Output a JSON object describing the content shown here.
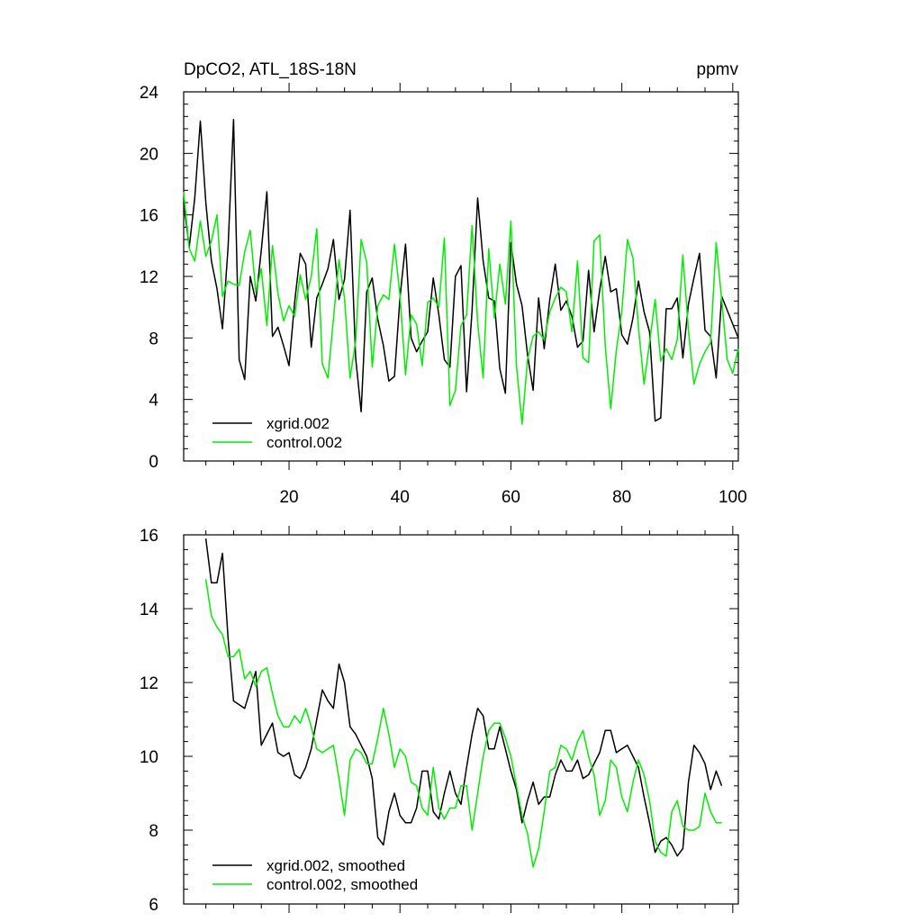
{
  "chart_data": [
    {
      "type": "line",
      "title": "DpCO2, ATL_18S-18N",
      "units": "ppmv",
      "xlabel": "",
      "ylabel": "",
      "xlim": [
        1,
        101
      ],
      "ylim": [
        0,
        24
      ],
      "xticks": [
        20,
        40,
        60,
        80,
        100
      ],
      "yticks": [
        0,
        4,
        8,
        12,
        16,
        20,
        24
      ],
      "legend": "bottom-left",
      "grid": false,
      "x": [
        1,
        2,
        3,
        4,
        5,
        6,
        7,
        8,
        9,
        10,
        11,
        12,
        13,
        14,
        15,
        16,
        17,
        18,
        19,
        20,
        21,
        22,
        23,
        24,
        25,
        26,
        27,
        28,
        29,
        30,
        31,
        32,
        33,
        34,
        35,
        36,
        37,
        38,
        39,
        40,
        41,
        42,
        43,
        44,
        45,
        46,
        47,
        48,
        49,
        50,
        51,
        52,
        53,
        54,
        55,
        56,
        57,
        58,
        59,
        60,
        61,
        62,
        63,
        64,
        65,
        66,
        67,
        68,
        69,
        70,
        71,
        72,
        73,
        74,
        75,
        76,
        77,
        78,
        79,
        80,
        81,
        82,
        83,
        84,
        85,
        86,
        87,
        88,
        89,
        90,
        91,
        92,
        93,
        94,
        95,
        96,
        97,
        98,
        99,
        100,
        101
      ],
      "series": [
        {
          "name": "xgrid.002",
          "color": "#000000",
          "values": [
            16.8,
            13.9,
            17.1,
            22.1,
            16.8,
            13.0,
            11.2,
            8.6,
            13.9,
            22.2,
            6.6,
            5.3,
            12.0,
            10.4,
            13.7,
            17.5,
            8.1,
            8.7,
            7.5,
            6.2,
            10.3,
            13.5,
            12.8,
            7.4,
            10.6,
            11.5,
            12.5,
            14.4,
            10.5,
            11.8,
            16.3,
            6.7,
            3.2,
            11.0,
            11.9,
            9.2,
            7.5,
            5.2,
            5.5,
            10.6,
            14.1,
            8.0,
            7.1,
            7.8,
            8.4,
            11.9,
            9.5,
            6.6,
            6.1,
            12.0,
            12.7,
            4.5,
            9.8,
            17.1,
            13.0,
            10.6,
            10.4,
            6.0,
            4.4,
            14.2,
            11.5,
            10.1,
            6.9,
            4.6,
            10.6,
            7.3,
            10.5,
            12.8,
            9.8,
            10.4,
            9.4,
            7.4,
            7.8,
            12.4,
            8.4,
            11.1,
            13.3,
            11.0,
            11.2,
            8.2,
            7.6,
            9.3,
            11.7,
            9.7,
            8.4,
            2.6,
            2.8,
            9.9,
            9.9,
            10.6,
            6.7,
            10.2,
            11.9,
            13.5,
            8.5,
            8.1,
            5.4,
            10.7,
            9.8,
            8.9,
            8.0
          ]
        },
        {
          "name": "control.002",
          "color": "#00ee00",
          "values": [
            17.5,
            13.8,
            13.0,
            15.6,
            13.3,
            14.3,
            16.0,
            10.7,
            11.7,
            11.5,
            11.4,
            13.6,
            15.0,
            11.0,
            12.5,
            8.8,
            14.0,
            10.9,
            9.1,
            10.1,
            9.4,
            12.1,
            10.5,
            12.0,
            15.1,
            6.3,
            5.4,
            9.2,
            13.1,
            10.6,
            5.4,
            7.8,
            14.4,
            12.9,
            6.1,
            10.1,
            10.8,
            10.5,
            14.1,
            10.8,
            5.6,
            9.5,
            8.9,
            6.2,
            10.3,
            10.6,
            10.0,
            14.5,
            3.6,
            4.6,
            8.8,
            9.5,
            15.3,
            9.0,
            5.4,
            13.8,
            9.3,
            12.8,
            10.2,
            15.6,
            6.2,
            2.4,
            6.6,
            8.1,
            8.4,
            7.9,
            9.7,
            10.6,
            11.3,
            11.0,
            8.4,
            13.0,
            6.7,
            6.4,
            14.3,
            14.7,
            7.5,
            3.4,
            7.2,
            9.7,
            14.4,
            13.2,
            8.7,
            5.0,
            7.7,
            10.5,
            6.5,
            7.3,
            6.6,
            7.9,
            13.4,
            8.5,
            5.0,
            6.3,
            7.1,
            7.7,
            14.2,
            10.5,
            6.6,
            5.7,
            7.3
          ]
        }
      ]
    },
    {
      "type": "line",
      "title": "",
      "xlabel": "",
      "ylabel": "",
      "xlim": [
        1,
        101
      ],
      "ylim": [
        6,
        16
      ],
      "xticks": [
        20,
        40,
        60,
        80,
        100
      ],
      "yticks": [
        6,
        8,
        10,
        12,
        14,
        16
      ],
      "legend": "bottom-left",
      "grid": false,
      "x": [
        5,
        6,
        7,
        8,
        9,
        10,
        11,
        12,
        13,
        14,
        15,
        16,
        17,
        18,
        19,
        20,
        21,
        22,
        23,
        24,
        25,
        26,
        27,
        28,
        29,
        30,
        31,
        32,
        33,
        34,
        35,
        36,
        37,
        38,
        39,
        40,
        41,
        42,
        43,
        44,
        45,
        46,
        47,
        48,
        49,
        50,
        51,
        52,
        53,
        54,
        55,
        56,
        57,
        58,
        59,
        60,
        61,
        62,
        63,
        64,
        65,
        66,
        67,
        68,
        69,
        70,
        71,
        72,
        73,
        74,
        75,
        76,
        77,
        78,
        79,
        80,
        81,
        82,
        83,
        84,
        85,
        86,
        87,
        88,
        89,
        90,
        91,
        92,
        93,
        94,
        95,
        96,
        97,
        98
      ],
      "series": [
        {
          "name": "xgrid.002, smoothed",
          "color": "#000000",
          "values": [
            15.9,
            14.7,
            14.7,
            15.5,
            13.2,
            11.5,
            11.4,
            11.3,
            11.8,
            12.3,
            10.3,
            10.6,
            10.9,
            10.1,
            10.0,
            10.1,
            9.5,
            9.4,
            9.7,
            10.2,
            11.0,
            11.8,
            11.5,
            11.3,
            12.5,
            12.0,
            10.8,
            10.6,
            10.3,
            10.0,
            9.4,
            7.8,
            7.6,
            8.5,
            9.0,
            8.4,
            8.2,
            8.2,
            8.6,
            9.6,
            9.6,
            8.5,
            8.3,
            9.0,
            9.6,
            9.0,
            8.7,
            9.7,
            10.6,
            11.3,
            11.1,
            10.2,
            10.2,
            10.8,
            10.2,
            9.6,
            9.1,
            8.2,
            8.8,
            9.3,
            8.7,
            8.9,
            8.9,
            9.5,
            9.9,
            9.6,
            9.6,
            9.9,
            9.4,
            9.5,
            9.8,
            10.1,
            10.7,
            10.7,
            10.1,
            10.2,
            10.3,
            10.0,
            9.7,
            8.9,
            8.2,
            7.4,
            7.7,
            7.8,
            7.6,
            7.3,
            7.5,
            9.3,
            10.3,
            10.1,
            9.8,
            9.1,
            9.6,
            9.2
          ]
        },
        {
          "name": "control.002, smoothed",
          "color": "#00ee00",
          "values": [
            14.8,
            13.8,
            13.5,
            13.3,
            12.7,
            12.7,
            12.9,
            12.1,
            12.3,
            11.9,
            12.3,
            12.4,
            11.7,
            11.1,
            10.8,
            10.8,
            11.1,
            10.9,
            11.3,
            10.8,
            10.2,
            10.1,
            10.2,
            10.3,
            9.4,
            8.4,
            9.9,
            10.2,
            10.1,
            9.8,
            9.8,
            10.5,
            11.3,
            10.6,
            9.7,
            10.2,
            10.0,
            9.3,
            9.2,
            8.6,
            8.4,
            9.7,
            8.6,
            8.3,
            8.6,
            8.6,
            9.2,
            9.2,
            8.0,
            9.0,
            10.0,
            10.7,
            10.9,
            10.9,
            10.5,
            10.0,
            9.2,
            8.4,
            7.9,
            7.0,
            7.5,
            8.5,
            9.6,
            9.7,
            10.3,
            10.2,
            9.9,
            10.4,
            10.7,
            10.0,
            9.5,
            8.4,
            8.8,
            9.9,
            9.7,
            8.9,
            8.5,
            9.3,
            9.9,
            9.5,
            8.8,
            7.7,
            7.4,
            7.3,
            8.5,
            8.8,
            8.1,
            8.0,
            8.0,
            8.1,
            9.0,
            8.5,
            8.2,
            8.2
          ]
        }
      ]
    }
  ]
}
